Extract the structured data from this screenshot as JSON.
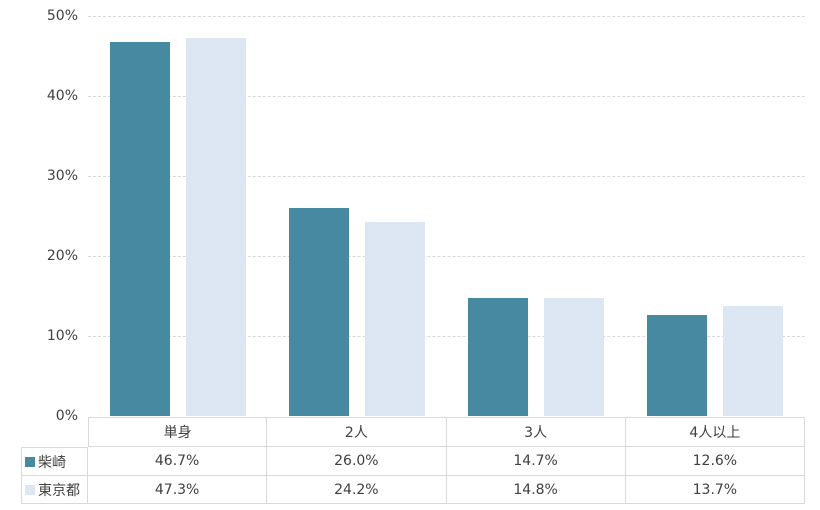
{
  "chart_data": {
    "type": "bar",
    "title": "",
    "xlabel": "",
    "ylabel": "",
    "categories": [
      "単身",
      "2人",
      "3人",
      "4人以上"
    ],
    "series": [
      {
        "name": "柴崎",
        "color": "#4789a1",
        "values": [
          46.7,
          26.0,
          14.7,
          12.6
        ]
      },
      {
        "name": "東京都",
        "color": "#dce7f3",
        "values": [
          47.3,
          24.2,
          14.8,
          13.7
        ]
      }
    ],
    "ylim": [
      0,
      50
    ],
    "y_tick_step": 10,
    "y_tick_labels": [
      "0%",
      "10%",
      "20%",
      "30%",
      "40%",
      "50%"
    ],
    "grid": true,
    "gridline_style": "dashed",
    "gridline_color": "#d9d9d9",
    "legend_position": "data-table-left",
    "value_suffix": "%",
    "value_decimals": 1
  },
  "table": {
    "border_color": "#d9d9d9",
    "text_color": "#404040"
  }
}
